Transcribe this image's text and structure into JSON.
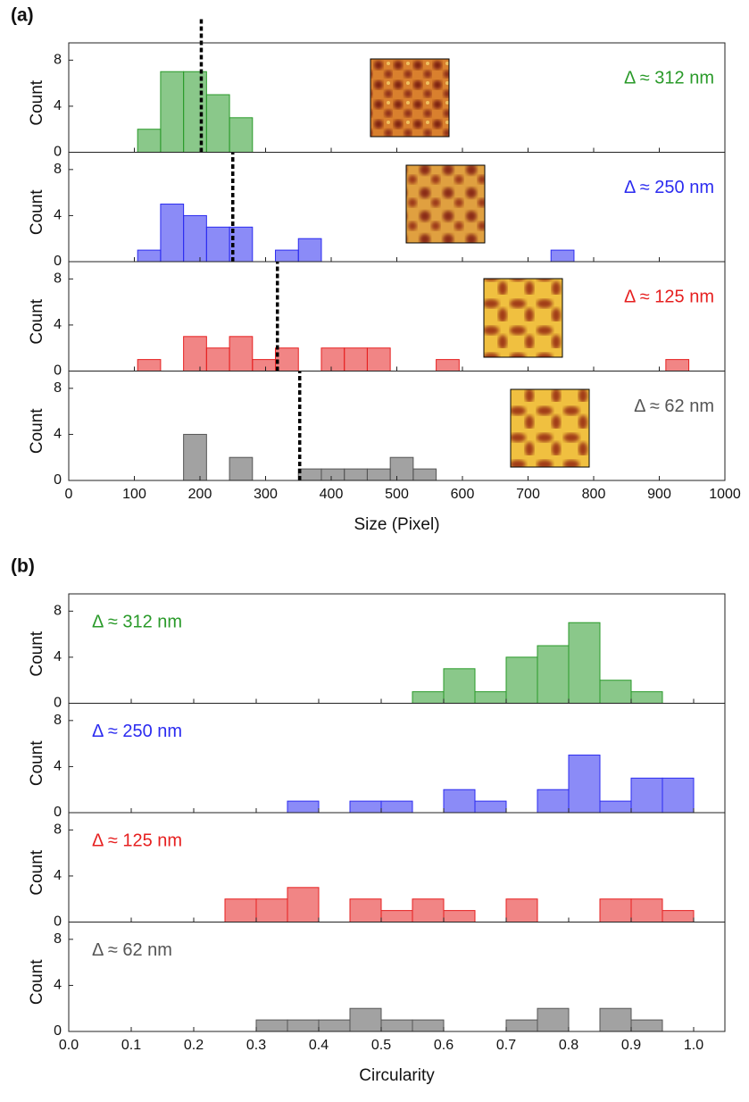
{
  "chart_data": [
    {
      "type": "histogram",
      "panel_label": "(a)",
      "xlabel": "Size (Pixel)",
      "xlim": [
        0,
        1000
      ],
      "xticks": [
        0,
        100,
        200,
        300,
        400,
        500,
        600,
        700,
        800,
        900,
        1000
      ],
      "ylim": [
        0,
        9.5
      ],
      "yticks": [
        0,
        4,
        8
      ],
      "bins": [
        105,
        140,
        175,
        210,
        245,
        280,
        315,
        350,
        385,
        420,
        455,
        490,
        525,
        560,
        595,
        630,
        665,
        700,
        735,
        770,
        805,
        840,
        875,
        910,
        945
      ],
      "series": [
        {
          "name": "Δ ≈ 312 nm",
          "ylabel": "Count",
          "color": "#2a9a2a",
          "dashed_line": 202,
          "values": [
            2,
            7,
            7,
            5,
            3,
            0,
            0,
            0,
            0,
            0,
            0,
            0,
            0,
            0,
            0,
            0,
            0,
            0,
            0,
            0,
            0,
            0,
            0,
            0
          ]
        },
        {
          "name": "Δ ≈ 250 nm",
          "ylabel": "Count",
          "color": "#2b2bf0",
          "dashed_line": 250,
          "values": [
            1,
            5,
            4,
            3,
            3,
            0,
            1,
            2,
            0,
            0,
            0,
            0,
            0,
            0,
            0,
            0,
            0,
            0,
            1,
            0,
            0,
            0,
            0,
            0
          ]
        },
        {
          "name": "Δ ≈ 125 nm",
          "ylabel": "Count",
          "color": "#e62020",
          "dashed_line": 318,
          "values": [
            1,
            0,
            3,
            2,
            3,
            1,
            2,
            0,
            2,
            2,
            2,
            0,
            0,
            1,
            0,
            0,
            0,
            0,
            0,
            0,
            0,
            0,
            0,
            1
          ]
        },
        {
          "name": "Δ ≈ 62 nm",
          "ylabel": "Count",
          "color": "#555555",
          "dashed_line": 352,
          "values": [
            0,
            0,
            4,
            0,
            2,
            0,
            0,
            1,
            1,
            1,
            1,
            2,
            1,
            0,
            0,
            0,
            0,
            0,
            0,
            0,
            0,
            0,
            0,
            0
          ]
        }
      ]
    },
    {
      "type": "histogram",
      "panel_label": "(b)",
      "xlabel": "Circularity",
      "xlim": [
        0,
        1.05
      ],
      "xticks": [
        {
          "value": 0,
          "label": "0.0"
        },
        0.1,
        0.2,
        0.3,
        0.4,
        0.5,
        0.6,
        0.7,
        0.8,
        0.9,
        {
          "value": 1,
          "label": "1.0"
        }
      ],
      "ylim": [
        0,
        9.5
      ],
      "yticks": [
        0,
        4,
        8
      ],
      "bins": [
        0.25,
        0.3,
        0.35,
        0.4,
        0.45,
        0.5,
        0.55,
        0.6,
        0.65,
        0.7,
        0.75,
        0.8,
        0.85,
        0.9,
        0.95,
        1.0
      ],
      "series": [
        {
          "name": "Δ ≈ 312 nm",
          "ylabel": "Count",
          "color": "#2a9a2a",
          "values": [
            0,
            0,
            0,
            0,
            0,
            0,
            1,
            3,
            1,
            4,
            5,
            7,
            2,
            1,
            0
          ]
        },
        {
          "name": "Δ ≈ 250 nm",
          "ylabel": "Count",
          "color": "#2b2bf0",
          "values": [
            0,
            0,
            1,
            0,
            1,
            1,
            0,
            2,
            1,
            0,
            2,
            5,
            1,
            3,
            3
          ]
        },
        {
          "name": "Δ ≈ 125 nm",
          "ylabel": "Count",
          "color": "#e62020",
          "values": [
            2,
            2,
            3,
            0,
            2,
            1,
            2,
            1,
            0,
            2,
            0,
            0,
            2,
            2,
            1
          ]
        },
        {
          "name": "Δ ≈ 62 nm",
          "ylabel": "Count",
          "color": "#555555",
          "values": [
            0,
            1,
            1,
            1,
            2,
            1,
            1,
            0,
            0,
            1,
            2,
            0,
            2,
            1,
            0
          ]
        }
      ]
    }
  ]
}
